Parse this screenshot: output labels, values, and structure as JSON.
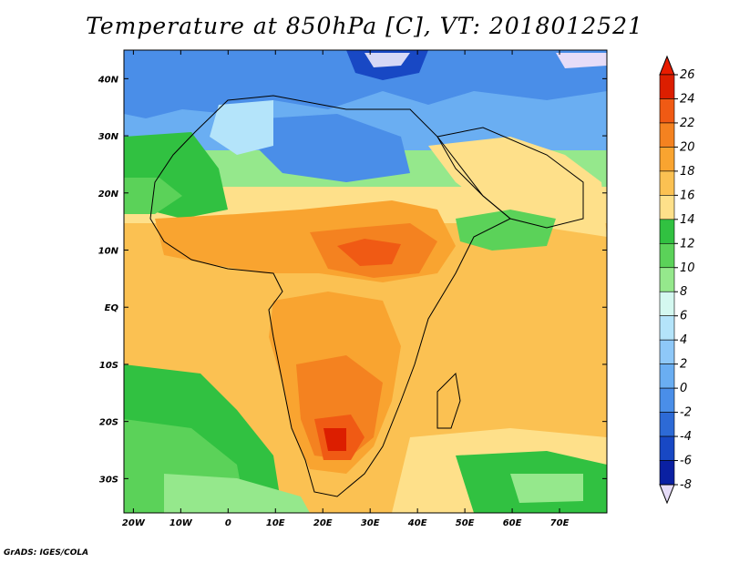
{
  "map": {
    "title": "Temperature at 850hPa [C], VT: 2018012521",
    "credit": "GrADS: IGES/COLA",
    "lon_range": [
      -22,
      80
    ],
    "lat_range": [
      -36,
      45
    ],
    "lat_ticks": [
      {
        "value": 40,
        "label": "40N"
      },
      {
        "value": 30,
        "label": "30N"
      },
      {
        "value": 20,
        "label": "20N"
      },
      {
        "value": 10,
        "label": "10N"
      },
      {
        "value": 0,
        "label": "EQ"
      },
      {
        "value": -10,
        "label": "10S"
      },
      {
        "value": -20,
        "label": "20S"
      },
      {
        "value": -30,
        "label": "30S"
      }
    ],
    "lon_ticks": [
      {
        "value": -20,
        "label": "20W"
      },
      {
        "value": -10,
        "label": "10W"
      },
      {
        "value": 0,
        "label": "0"
      },
      {
        "value": 10,
        "label": "10E"
      },
      {
        "value": 20,
        "label": "20E"
      },
      {
        "value": 30,
        "label": "30E"
      },
      {
        "value": 40,
        "label": "40E"
      },
      {
        "value": 50,
        "label": "50E"
      },
      {
        "value": 60,
        "label": "60E"
      },
      {
        "value": 70,
        "label": "70E"
      }
    ],
    "colorbar": {
      "levels": [
        "26",
        "24",
        "22",
        "20",
        "18",
        "16",
        "14",
        "12",
        "10",
        "8",
        "6",
        "4",
        "2",
        "0",
        "-2",
        "-4",
        "-6",
        "-8"
      ],
      "colors": [
        "#dc1e00",
        "#f05a14",
        "#f48220",
        "#f9a430",
        "#fbc152",
        "#fee08a",
        "#31c141",
        "#5bd259",
        "#95e88c",
        "#d4f8f0",
        "#b4e4fa",
        "#8ec8f8",
        "#6aaef2",
        "#4a8ee8",
        "#2d6ad6",
        "#1848c4",
        "#0a20a2"
      ],
      "top_color": "#e81c00",
      "bottom_color": "#e6dcf8"
    }
  }
}
